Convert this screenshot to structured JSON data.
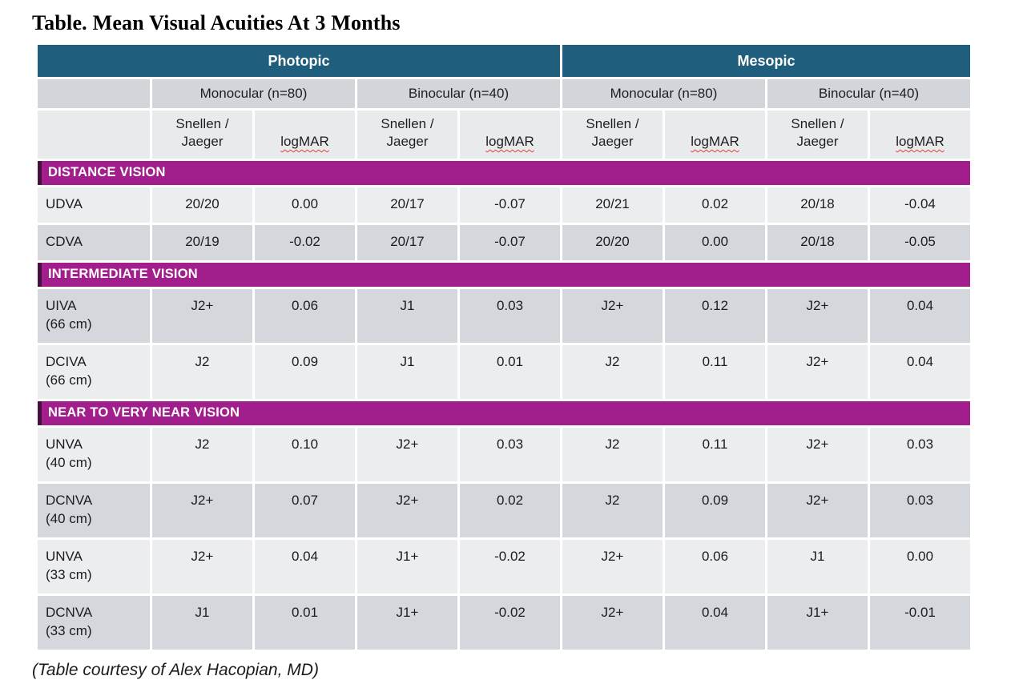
{
  "title": "Table. Mean Visual Acuities At 3 Months",
  "footnote": "(Table courtesy of Alex Hacopian, MD)",
  "colors": {
    "condition_header_bg": "#1F5E7D",
    "section_bar_bg": "#A21E8C",
    "section_bar_edge": "#481040",
    "group_header_bg": "#D2D5D9",
    "measure_header_bg": "#E9EAEC",
    "row_light_bg": "#ECEDEF",
    "row_dark_bg": "#D4D7DB",
    "squiggle_red": "#E0442E"
  },
  "table": {
    "condition_labels": [
      "Photopic",
      "Mesopic"
    ],
    "group_labels": [
      "Monocular (n=80)",
      "Binocular (n=40)",
      "Monocular (n=80)",
      "Binocular (n=40)"
    ],
    "measure_labels": [
      "Snellen /\nJaeger",
      "logMAR",
      "Snellen /\nJaeger",
      "logMAR",
      "Snellen /\nJaeger",
      "logMAR",
      "Snellen /\nJaeger",
      "logMAR"
    ],
    "sections": [
      {
        "title": "DISTANCE VISION",
        "rows": [
          {
            "label": "UDVA",
            "shade": "light",
            "values": [
              "20/20",
              "0.00",
              "20/17",
              "-0.07",
              "20/21",
              "0.02",
              "20/18",
              "-0.04"
            ]
          },
          {
            "label": "CDVA",
            "shade": "dark",
            "values": [
              "20/19",
              "-0.02",
              "20/17",
              "-0.07",
              "20/20",
              "0.00",
              "20/18",
              "-0.05"
            ]
          }
        ]
      },
      {
        "title": "INTERMEDIATE VISION",
        "rows": [
          {
            "label": "UIVA\n(66 cm)",
            "shade": "dark",
            "values": [
              "J2+",
              "0.06",
              "J1",
              "0.03",
              "J2+",
              "0.12",
              "J2+",
              "0.04"
            ]
          },
          {
            "label": "DCIVA\n(66 cm)",
            "shade": "light",
            "values": [
              "J2",
              "0.09",
              "J1",
              "0.01",
              "J2",
              "0.11",
              "J2+",
              "0.04"
            ]
          }
        ]
      },
      {
        "title": "NEAR TO VERY NEAR VISION",
        "rows": [
          {
            "label": "UNVA\n(40 cm)",
            "shade": "light",
            "values": [
              "J2",
              "0.10",
              "J2+",
              "0.03",
              "J2",
              "0.11",
              "J2+",
              "0.03"
            ]
          },
          {
            "label": "DCNVA\n(40 cm)",
            "shade": "dark",
            "values": [
              "J2+",
              "0.07",
              "J2+",
              "0.02",
              "J2",
              "0.09",
              "J2+",
              "0.03"
            ]
          },
          {
            "label": "UNVA\n(33 cm)",
            "shade": "light",
            "values": [
              "J2+",
              "0.04",
              "J1+",
              "-0.02",
              "J2+",
              "0.06",
              "J1",
              "0.00"
            ]
          },
          {
            "label": "DCNVA\n(33 cm)",
            "shade": "dark",
            "values": [
              "J1",
              "0.01",
              "J1+",
              "-0.02",
              "J2+",
              "0.04",
              "J1+",
              "-0.01"
            ]
          }
        ]
      }
    ]
  }
}
